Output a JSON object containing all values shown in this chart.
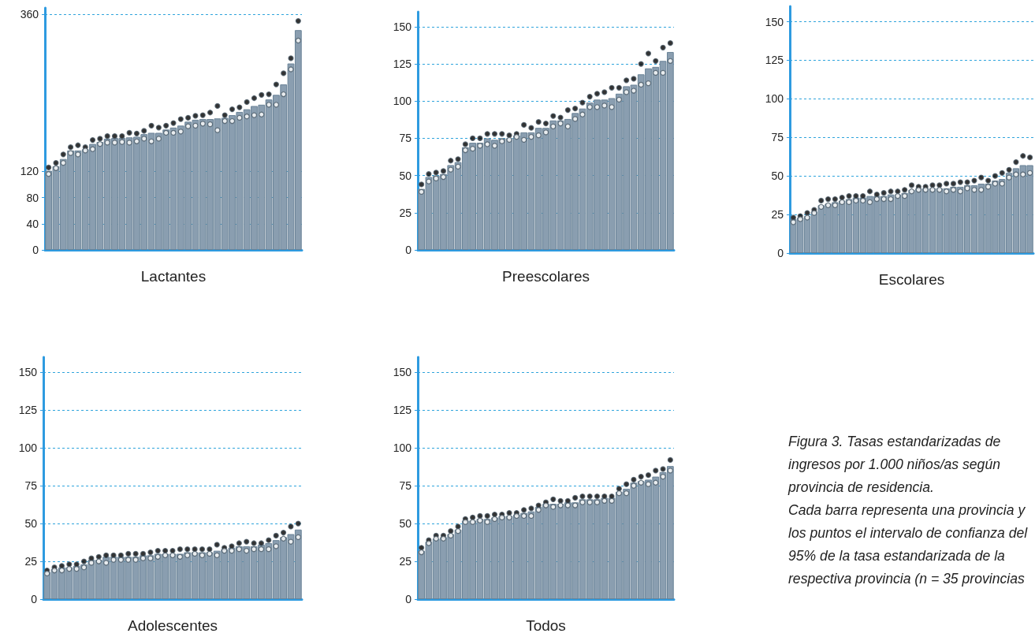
{
  "chart_data": [
    {
      "type": "bar",
      "xlabel": "Lactantes",
      "grid": "y",
      "tick_labels": "y",
      "marker": "circle",
      "ylim": [
        0,
        370
      ],
      "yticks": [
        0,
        40,
        80,
        120,
        360
      ],
      "categories": [
        null,
        null,
        null,
        null,
        null,
        null,
        null,
        null,
        null,
        null,
        null,
        null,
        null,
        null,
        null,
        null,
        null,
        null,
        null,
        null,
        null,
        null,
        null,
        null,
        null,
        null,
        null,
        null,
        null,
        null,
        null,
        null,
        null,
        null,
        null
      ],
      "series": [
        {
          "type": "bar",
          "color": "#8a9eb0",
          "values": [
            121,
            128,
            139,
            152,
            152,
            154,
            162,
            165,
            170,
            171,
            171,
            172,
            173,
            177,
            179,
            179,
            184,
            187,
            190,
            196,
            199,
            200,
            200,
            201,
            202,
            206,
            211,
            215,
            220,
            222,
            230,
            237,
            253,
            285,
            336
          ]
        },
        {
          "type": "scatter",
          "color": "#000000",
          "values": [
            126,
            133,
            146,
            157,
            160,
            157,
            168,
            170,
            174,
            174,
            174,
            179,
            178,
            182,
            190,
            187,
            190,
            194,
            200,
            202,
            205,
            206,
            210,
            220,
            206,
            215,
            218,
            226,
            232,
            237,
            238,
            253,
            270,
            293,
            350
          ]
        },
        {
          "type": "scatter",
          "color": "#ffffff",
          "values": [
            116,
            125,
            133,
            148,
            146,
            152,
            154,
            162,
            164,
            164,
            165,
            164,
            166,
            170,
            166,
            170,
            179,
            179,
            181,
            189,
            190,
            193,
            192,
            183,
            197,
            197,
            202,
            204,
            206,
            207,
            222,
            222,
            238,
            276,
            320
          ]
        }
      ]
    },
    {
      "type": "bar",
      "xlabel": "Preescolares",
      "grid": "y",
      "tick_labels": "y",
      "marker": "circle",
      "ylim": [
        0,
        160
      ],
      "yticks": [
        0,
        25,
        50,
        75,
        100,
        125,
        150
      ],
      "categories": [
        null,
        null,
        null,
        null,
        null,
        null,
        null,
        null,
        null,
        null,
        null,
        null,
        null,
        null,
        null,
        null,
        null,
        null,
        null,
        null,
        null,
        null,
        null,
        null,
        null,
        null,
        null,
        null,
        null,
        null,
        null,
        null,
        null,
        null,
        null
      ],
      "series": [
        {
          "type": "bar",
          "color": "#8a9eb0",
          "values": [
            41,
            49,
            50,
            51,
            57,
            59,
            69,
            72,
            72,
            75,
            74,
            75,
            75,
            77,
            79,
            79,
            82,
            82,
            87,
            87,
            88,
            92,
            95,
            99,
            101,
            101,
            102,
            105,
            110,
            111,
            118,
            122,
            123,
            127,
            133
          ]
        },
        {
          "type": "scatter",
          "color": "#000000",
          "values": [
            44,
            51,
            52,
            53,
            60,
            61,
            71,
            75,
            75,
            78,
            78,
            78,
            77,
            78,
            84,
            82,
            86,
            85,
            90,
            89,
            94,
            95,
            99,
            103,
            105,
            106,
            109,
            109,
            114,
            115,
            125,
            132,
            127,
            136,
            139
          ]
        },
        {
          "type": "scatter",
          "color": "#ffffff",
          "values": [
            39,
            46,
            48,
            49,
            54,
            56,
            67,
            68,
            70,
            71,
            70,
            73,
            74,
            76,
            74,
            76,
            77,
            79,
            83,
            85,
            83,
            88,
            91,
            96,
            96,
            97,
            96,
            101,
            106,
            107,
            111,
            112,
            119,
            119,
            127
          ]
        }
      ]
    },
    {
      "type": "bar",
      "xlabel": "Escolares",
      "grid": "y",
      "tick_labels": "y",
      "marker": "circle",
      "ylim": [
        0,
        160
      ],
      "yticks": [
        0,
        25,
        50,
        75,
        100,
        125,
        150
      ],
      "categories": [
        null,
        null,
        null,
        null,
        null,
        null,
        null,
        null,
        null,
        null,
        null,
        null,
        null,
        null,
        null,
        null,
        null,
        null,
        null,
        null,
        null,
        null,
        null,
        null,
        null,
        null,
        null,
        null,
        null,
        null,
        null,
        null,
        null,
        null,
        null
      ],
      "series": [
        {
          "type": "bar",
          "color": "#8a9eb0",
          "values": [
            22,
            23,
            24,
            27,
            31,
            32,
            33,
            34,
            35,
            36,
            36,
            37,
            37,
            37,
            38,
            38,
            39,
            41,
            42,
            42,
            42,
            42,
            42,
            43,
            43,
            44,
            44,
            45,
            45,
            47,
            48,
            52,
            55,
            57,
            57
          ]
        },
        {
          "type": "scatter",
          "color": "#000000",
          "values": [
            23,
            24,
            26,
            28,
            34,
            35,
            35,
            36,
            37,
            37,
            37,
            40,
            38,
            39,
            40,
            40,
            41,
            44,
            43,
            43,
            44,
            44,
            45,
            45,
            46,
            46,
            47,
            49,
            47,
            50,
            52,
            54,
            59,
            63,
            62
          ]
        },
        {
          "type": "scatter",
          "color": "#ffffff",
          "values": [
            20,
            22,
            23,
            26,
            30,
            31,
            31,
            33,
            33,
            34,
            34,
            33,
            35,
            35,
            35,
            37,
            37,
            40,
            41,
            41,
            41,
            41,
            40,
            41,
            40,
            42,
            41,
            41,
            43,
            45,
            45,
            49,
            51,
            51,
            52
          ]
        }
      ]
    },
    {
      "type": "bar",
      "xlabel": "Adolescentes",
      "grid": "y",
      "tick_labels": "y",
      "marker": "circle",
      "ylim": [
        0,
        160
      ],
      "yticks": [
        0,
        25,
        50,
        75,
        100,
        125,
        150
      ],
      "categories": [
        null,
        null,
        null,
        null,
        null,
        null,
        null,
        null,
        null,
        null,
        null,
        null,
        null,
        null,
        null,
        null,
        null,
        null,
        null,
        null,
        null,
        null,
        null,
        null,
        null,
        null,
        null,
        null,
        null,
        null,
        null,
        null,
        null,
        null,
        null
      ],
      "series": [
        {
          "type": "bar",
          "color": "#8a9eb0",
          "values": [
            18,
            20,
            21,
            21,
            22,
            23,
            26,
            26,
            28,
            28,
            28,
            28,
            28,
            29,
            29,
            30,
            30,
            30,
            30,
            31,
            31,
            31,
            31,
            32,
            33,
            34,
            35,
            35,
            35,
            36,
            37,
            39,
            41,
            43,
            46
          ]
        },
        {
          "type": "scatter",
          "color": "#000000",
          "values": [
            19,
            21,
            22,
            23,
            23,
            25,
            27,
            28,
            29,
            29,
            29,
            30,
            30,
            30,
            31,
            32,
            32,
            32,
            33,
            33,
            33,
            33,
            33,
            36,
            34,
            35,
            37,
            38,
            37,
            37,
            39,
            42,
            44,
            48,
            50
          ]
        },
        {
          "type": "scatter",
          "color": "#ffffff",
          "values": [
            17,
            19,
            19,
            20,
            20,
            21,
            24,
            25,
            24,
            26,
            26,
            26,
            26,
            27,
            27,
            28,
            29,
            29,
            28,
            29,
            30,
            29,
            30,
            29,
            32,
            32,
            33,
            32,
            33,
            33,
            33,
            35,
            40,
            38,
            41
          ]
        }
      ]
    },
    {
      "type": "bar",
      "xlabel": "Todos",
      "grid": "y",
      "tick_labels": "y",
      "marker": "circle",
      "ylim": [
        0,
        160
      ],
      "yticks": [
        0,
        25,
        50,
        75,
        100,
        125,
        150
      ],
      "categories": [
        null,
        null,
        null,
        null,
        null,
        null,
        null,
        null,
        null,
        null,
        null,
        null,
        null,
        null,
        null,
        null,
        null,
        null,
        null,
        null,
        null,
        null,
        null,
        null,
        null,
        null,
        null,
        null,
        null,
        null,
        null,
        null,
        null,
        null,
        null
      ],
      "series": [
        {
          "type": "bar",
          "color": "#8a9eb0",
          "values": [
            32,
            38,
            40,
            41,
            43,
            46,
            52,
            52,
            53,
            53,
            54,
            55,
            55,
            56,
            57,
            58,
            61,
            63,
            63,
            63,
            64,
            64,
            66,
            66,
            66,
            67,
            67,
            71,
            73,
            77,
            78,
            79,
            81,
            84,
            88
          ]
        },
        {
          "type": "scatter",
          "color": "#000000",
          "values": [
            34,
            39,
            42,
            42,
            45,
            48,
            53,
            54,
            55,
            55,
            56,
            56,
            57,
            57,
            59,
            60,
            62,
            64,
            66,
            65,
            65,
            67,
            68,
            68,
            68,
            68,
            68,
            73,
            76,
            79,
            81,
            82,
            85,
            86,
            92
          ]
        },
        {
          "type": "scatter",
          "color": "#ffffff",
          "values": [
            31,
            37,
            40,
            40,
            42,
            45,
            51,
            51,
            52,
            51,
            53,
            54,
            54,
            55,
            55,
            55,
            59,
            62,
            61,
            62,
            62,
            62,
            64,
            64,
            64,
            65,
            65,
            70,
            70,
            75,
            77,
            76,
            77,
            81,
            85
          ]
        }
      ]
    },
    {
      "type": "other",
      "annotations": [
        "Figura 3. Tasas estandarizadas de ingresos por 1.000 niños/as según provincia de residencia.",
        "Cada barra representa una provincia y los puntos el intervalo de confianza del 95% de la tasa estandarizada de la respectiva provincia (n = 35 provincias"
      ]
    }
  ]
}
